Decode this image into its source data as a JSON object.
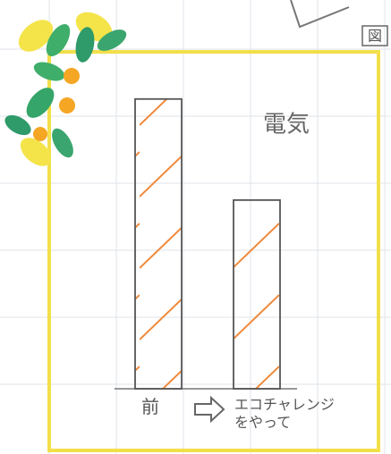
{
  "chart_data": {
    "type": "bar",
    "title": "電気",
    "badge": "図",
    "categories": [
      "前",
      "エコチャレンジ\nをやって"
    ],
    "values": [
      4.3,
      2.8
    ],
    "color": "#f08a3c",
    "outline": "#555555",
    "ylim": [
      0,
      5
    ]
  }
}
